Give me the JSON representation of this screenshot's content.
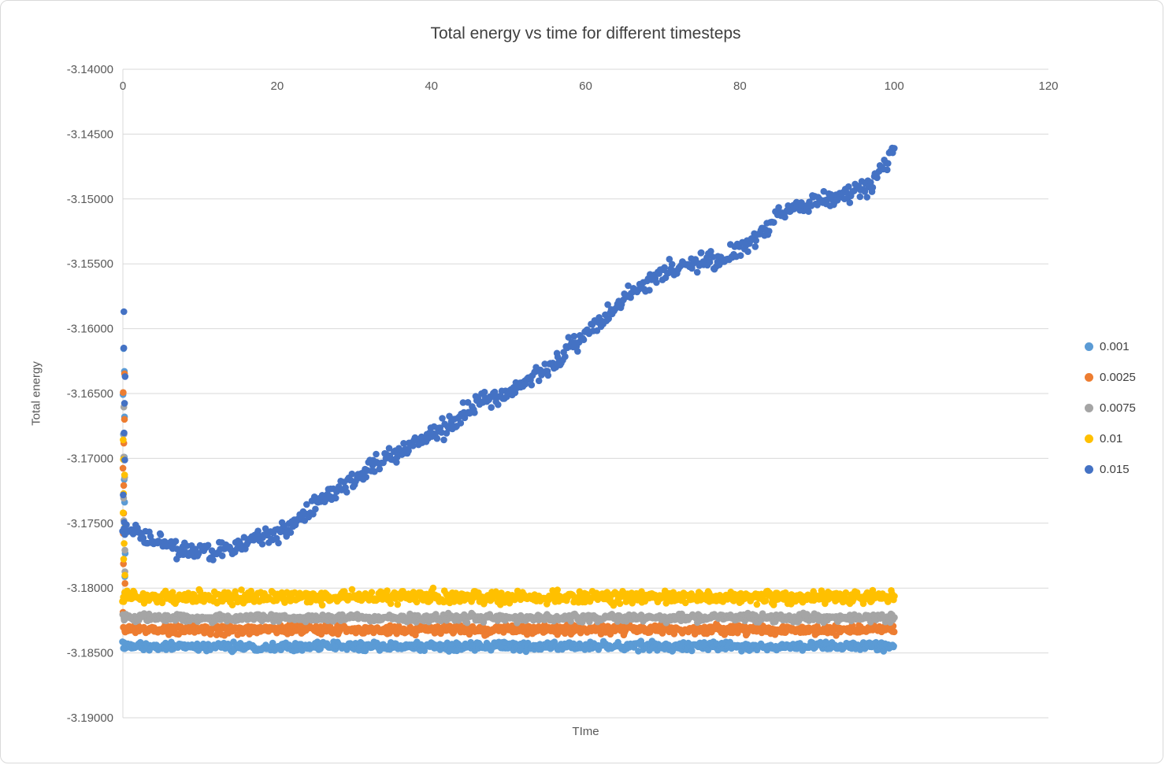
{
  "chart_data": {
    "type": "scatter",
    "title": "Total energy vs time for different timesteps",
    "xlabel": "TIme",
    "ylabel": "Total energy",
    "xlim": [
      0,
      120
    ],
    "ylim": [
      -3.19,
      -3.14
    ],
    "x_ticks": [
      0,
      20,
      40,
      60,
      80,
      100,
      120
    ],
    "y_ticks": [
      -3.14,
      -3.145,
      -3.15,
      -3.155,
      -3.16,
      -3.165,
      -3.17,
      -3.175,
      -3.18,
      -3.185,
      -3.19
    ],
    "y_decimals": 5,
    "grid": true,
    "legend_position": "right",
    "marker_radius": 4.3,
    "gridline_color": "#d9d9d9",
    "tick_color": "#595959",
    "series": [
      {
        "name": "0.001",
        "color": "#5B9BD5",
        "x_start": 0,
        "x_end": 100,
        "points": 800,
        "trend": [
          [
            0,
            -3.1845
          ],
          [
            100,
            -3.1845
          ]
        ],
        "noise": 0.0005,
        "transient": {
          "x": 0,
          "y_from": -3.1614,
          "y_to": -3.1842,
          "count": 14
        }
      },
      {
        "name": "0.0025",
        "color": "#ED7D31",
        "x_start": 0,
        "x_end": 100,
        "points": 800,
        "trend": [
          [
            0,
            -3.1832
          ],
          [
            100,
            -3.1832
          ]
        ],
        "noise": 0.00055,
        "transient": {
          "x": 0,
          "y_from": -3.1632,
          "y_to": -3.1834,
          "count": 12
        }
      },
      {
        "name": "0.0075",
        "color": "#A5A5A5",
        "x_start": 0,
        "x_end": 100,
        "points": 800,
        "trend": [
          [
            0,
            -3.1823
          ],
          [
            100,
            -3.1823
          ]
        ],
        "noise": 0.00045,
        "transient": {
          "x": 0,
          "y_from": -3.1662,
          "y_to": -3.1822,
          "count": 10
        }
      },
      {
        "name": "0.01",
        "color": "#FFC000",
        "x_start": 0,
        "x_end": 100,
        "points": 800,
        "trend": [
          [
            0,
            -3.1807
          ],
          [
            100,
            -3.1807
          ]
        ],
        "noise": 0.00075,
        "transient": {
          "x": 0,
          "y_from": -3.1688,
          "y_to": -3.1806,
          "count": 10
        }
      },
      {
        "name": "0.015",
        "color": "#4472C4",
        "x_start": 0,
        "x_end": 100,
        "points": 650,
        "trend": [
          [
            0,
            -3.1752
          ],
          [
            4,
            -3.1763
          ],
          [
            8,
            -3.177
          ],
          [
            12,
            -3.1772
          ],
          [
            16,
            -3.1765
          ],
          [
            20,
            -3.1757
          ],
          [
            23,
            -3.1748
          ],
          [
            26,
            -3.173
          ],
          [
            30,
            -3.1716
          ],
          [
            34,
            -3.17
          ],
          [
            38,
            -3.1688
          ],
          [
            42,
            -3.1676
          ],
          [
            46,
            -3.1658
          ],
          [
            50,
            -3.1648
          ],
          [
            54,
            -3.1636
          ],
          [
            58,
            -3.1615
          ],
          [
            62,
            -3.1594
          ],
          [
            66,
            -3.1572
          ],
          [
            70,
            -3.1556
          ],
          [
            74,
            -3.1548
          ],
          [
            78,
            -3.1548
          ],
          [
            82,
            -3.153
          ],
          [
            86,
            -3.1508
          ],
          [
            90,
            -3.1502
          ],
          [
            94,
            -3.1496
          ],
          [
            97,
            -3.1488
          ],
          [
            100,
            -3.1462
          ]
        ],
        "noise": 0.0011,
        "transient": {
          "x": 0,
          "y_from": -3.1589,
          "y_to": -3.175,
          "count": 8
        }
      }
    ]
  }
}
